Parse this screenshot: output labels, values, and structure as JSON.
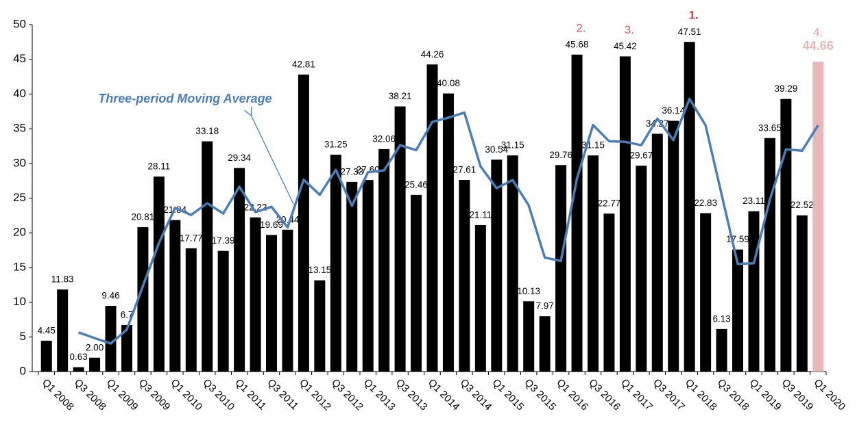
{
  "chart_data": {
    "type": "bar",
    "categories": [
      "Q1 2008",
      null,
      "Q3 2008",
      null,
      "Q1 2009",
      null,
      "Q3 2009",
      null,
      "Q1 2010",
      null,
      "Q3 2010",
      null,
      "Q1 2011",
      null,
      "Q3 2011",
      null,
      "Q1 2012",
      null,
      "Q3 2012",
      null,
      "Q1 2013",
      null,
      "Q3 2013",
      null,
      "Q1 2014",
      null,
      "Q3 2014",
      null,
      "Q1 2015",
      null,
      "Q3 2015",
      null,
      "Q1 2016",
      null,
      "Q3 2016",
      null,
      "Q1 2017",
      null,
      "Q3 2017",
      null,
      "Q1 2018",
      null,
      "Q3 2018",
      null,
      "Q1 2019",
      null,
      "Q3 2019",
      null,
      "Q1 2020"
    ],
    "values": [
      4.45,
      11.83,
      0.63,
      2.0,
      9.46,
      6.7,
      20.81,
      28.11,
      21.84,
      17.77,
      33.18,
      17.39,
      29.34,
      22.22,
      19.69,
      20.44,
      42.81,
      13.15,
      31.25,
      27.33,
      27.6,
      32.06,
      38.21,
      25.46,
      44.26,
      40.08,
      27.61,
      21.11,
      30.54,
      31.15,
      10.13,
      7.97,
      29.76,
      45.68,
      31.15,
      22.77,
      45.42,
      29.67,
      34.27,
      36.14,
      47.51,
      22.83,
      6.13,
      17.59,
      23.11,
      33.65,
      39.29,
      22.52,
      44.66
    ],
    "value_labels": [
      "4.45",
      "11.83",
      "0.63",
      "2.00",
      "9.46",
      "6.7",
      "20.81",
      "28.11",
      "21.84",
      "17.77",
      "33.18",
      "17.39",
      "29.34",
      "22.22",
      "19.69",
      "20.44",
      "42.81",
      "13.15",
      "31.25",
      "27.33",
      "27.60",
      "32.06",
      "38.21",
      "25.46",
      "44.26",
      "40.08",
      "27.61",
      "21.11",
      "30.54",
      "31.15",
      "10.13",
      "7.97",
      "29.76",
      "45.68",
      "31.15",
      "22.77",
      "45.42",
      "29.67",
      "34.27",
      "36.14",
      "47.51",
      "22.83",
      "6.13",
      "17.59",
      "23.11",
      "33.65",
      "39.29",
      "22.52",
      "44.66"
    ],
    "colors": [
      "#000000",
      "#000000",
      "#000000",
      "#000000",
      "#000000",
      "#000000",
      "#000000",
      "#000000",
      "#000000",
      "#000000",
      "#000000",
      "#000000",
      "#000000",
      "#000000",
      "#000000",
      "#000000",
      "#000000",
      "#000000",
      "#000000",
      "#000000",
      "#000000",
      "#000000",
      "#000000",
      "#000000",
      "#000000",
      "#000000",
      "#000000",
      "#000000",
      "#000000",
      "#000000",
      "#000000",
      "#000000",
      "#000000",
      "#000000",
      "#000000",
      "#000000",
      "#000000",
      "#000000",
      "#000000",
      "#000000",
      "#000000",
      "#000000",
      "#000000",
      "#000000",
      "#000000",
      "#000000",
      "#000000",
      "#000000",
      "#e6b8b7"
    ],
    "rank_labels": [
      null,
      null,
      null,
      null,
      null,
      null,
      null,
      null,
      null,
      null,
      null,
      null,
      null,
      null,
      null,
      null,
      null,
      null,
      null,
      null,
      null,
      null,
      null,
      null,
      null,
      null,
      null,
      null,
      null,
      null,
      null,
      null,
      null,
      {
        "label": "2.",
        "color": "#cd5c5c",
        "bold": false
      },
      null,
      null,
      {
        "label": "3.",
        "color": "#cd5c5c",
        "bold": false
      },
      null,
      null,
      null,
      {
        "label": "1.",
        "color": "#b94444",
        "bold": true
      },
      null,
      null,
      null,
      null,
      null,
      null,
      null,
      {
        "label": "4.",
        "color": "#e6a3a2",
        "bold": false
      }
    ],
    "moving_average": {
      "name": "Three-period Moving Average",
      "color": "#4a7ebb",
      "values": [
        null,
        null,
        5.64,
        4.82,
        4.03,
        6.05,
        12.32,
        18.54,
        23.59,
        22.57,
        24.26,
        22.78,
        26.64,
        22.98,
        23.75,
        20.78,
        27.65,
        25.47,
        29.07,
        23.91,
        28.73,
        29.0,
        32.62,
        31.91,
        35.98,
        36.6,
        37.32,
        29.6,
        26.42,
        27.6,
        23.94,
        16.42,
        15.95,
        27.8,
        35.53,
        33.2,
        33.11,
        32.62,
        36.45,
        33.36,
        39.31,
        35.49,
        25.49,
        15.52,
        15.61,
        24.78,
        32.02,
        31.82,
        35.49
      ]
    },
    "ylim": [
      0,
      50
    ],
    "yticks": [
      0,
      5,
      10,
      15,
      20,
      25,
      30,
      35,
      40,
      45,
      50
    ],
    "grid": false
  }
}
